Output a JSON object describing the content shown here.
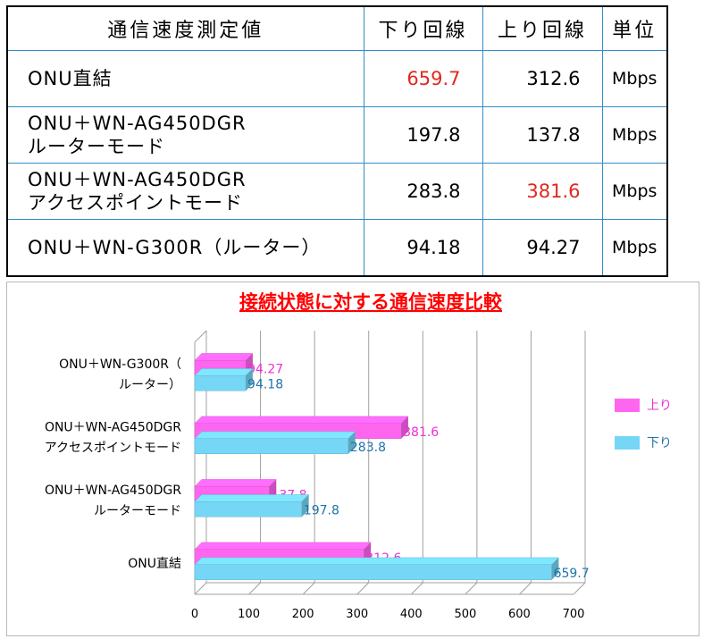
{
  "table": {
    "headers": [
      "通信速度測定値",
      "下り回線",
      "上り回線",
      "単位"
    ],
    "rows": [
      {
        "name_lines": [
          "ONU直結"
        ],
        "down": "659.7",
        "up": "312.6",
        "unit": "Mbps",
        "highlight": "down"
      },
      {
        "name_lines": [
          "ONU＋WN-AG450DGR",
          "ルーターモード"
        ],
        "down": "197.8",
        "up": "137.8",
        "unit": "Mbps",
        "highlight": ""
      },
      {
        "name_lines": [
          "ONU＋WN-AG450DGR",
          "アクセスポイントモード"
        ],
        "down": "283.8",
        "up": "381.6",
        "unit": "Mbps",
        "highlight": "up"
      },
      {
        "name_lines": [
          "ONU＋WN-G300R（ルーター）"
        ],
        "down": "94.18",
        "up": "94.27",
        "unit": "Mbps",
        "highlight": ""
      }
    ]
  },
  "chart_data": {
    "type": "bar",
    "orientation": "horizontal",
    "style": "3d",
    "title": "接続状態に対する通信速度比較",
    "categories": [
      [
        "ONU直結"
      ],
      [
        "ONU＋WN-AG450DGR",
        "ルーターモード"
      ],
      [
        "ONU＋WN-AG450DGR",
        "アクセスポイントモード"
      ],
      [
        "ONU＋WN-G300R（",
        "ルーター）"
      ]
    ],
    "series": [
      {
        "name": "上り",
        "values": [
          312.6,
          137.8,
          381.6,
          94.27
        ],
        "labels": [
          "312.6",
          "137.8",
          "381.6",
          "94.27"
        ],
        "color": "#ff66f0",
        "label_color": "#ee2ed8"
      },
      {
        "name": "下り",
        "values": [
          659.7,
          197.8,
          283.8,
          94.18
        ],
        "labels": [
          "659.7",
          "197.8",
          "283.8",
          "94.18"
        ],
        "color": "#76d6f5",
        "label_color": "#1f74a8"
      }
    ],
    "xlim": [
      0,
      700
    ],
    "xticks": [
      "0",
      "100",
      "200",
      "300",
      "400",
      "500",
      "600",
      "700"
    ],
    "grid": true,
    "legend": "right",
    "highlight_color": "#e0281f"
  }
}
